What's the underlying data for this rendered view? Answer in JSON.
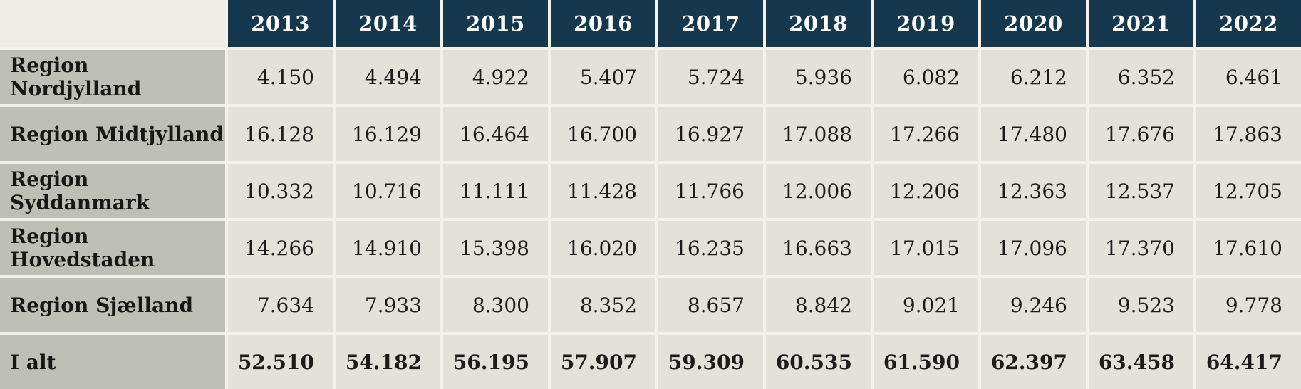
{
  "table": {
    "corner_label": "",
    "columns": [
      "2013",
      "2014",
      "2015",
      "2016",
      "2017",
      "2018",
      "2019",
      "2020",
      "2021",
      "2022"
    ],
    "rows": [
      {
        "label": "Region Nordjylland",
        "bold": false,
        "values": [
          "4.150",
          "4.494",
          "4.922",
          "5.407",
          "5.724",
          "5.936",
          "6.082",
          "6.212",
          "6.352",
          "6.461"
        ]
      },
      {
        "label": "Region Midtjylland",
        "bold": false,
        "values": [
          "16.128",
          "16.129",
          "16.464",
          "16.700",
          "16.927",
          "17.088",
          "17.266",
          "17.480",
          "17.676",
          "17.863"
        ]
      },
      {
        "label": "Region Syddanmark",
        "bold": false,
        "values": [
          "10.332",
          "10.716",
          "11.111",
          "11.428",
          "11.766",
          "12.006",
          "12.206",
          "12.363",
          "12.537",
          "12.705"
        ]
      },
      {
        "label": "Region Hovedstaden",
        "bold": false,
        "values": [
          "14.266",
          "14.910",
          "15.398",
          "16.020",
          "16.235",
          "16.663",
          "17.015",
          "17.096",
          "17.370",
          "17.610"
        ]
      },
      {
        "label": "Region Sjælland",
        "bold": false,
        "values": [
          "7.634",
          "7.933",
          "8.300",
          "8.352",
          "8.657",
          "8.842",
          "9.021",
          "9.246",
          "9.523",
          "9.778"
        ]
      },
      {
        "label": "I alt",
        "bold": true,
        "values": [
          "52.510",
          "54.182",
          "56.195",
          "57.907",
          "59.309",
          "60.535",
          "61.590",
          "62.397",
          "63.458",
          "64.417"
        ]
      }
    ]
  },
  "chart_data": {
    "type": "table",
    "categories": [
      "2013",
      "2014",
      "2015",
      "2016",
      "2017",
      "2018",
      "2019",
      "2020",
      "2021",
      "2022"
    ],
    "series": [
      {
        "name": "Region Nordjylland",
        "values": [
          4150,
          4494,
          4922,
          5407,
          5724,
          5936,
          6082,
          6212,
          6352,
          6461
        ]
      },
      {
        "name": "Region Midtjylland",
        "values": [
          16128,
          16129,
          16464,
          16700,
          16927,
          17088,
          17266,
          17480,
          17676,
          17863
        ]
      },
      {
        "name": "Region Syddanmark",
        "values": [
          10332,
          10716,
          11111,
          11428,
          11766,
          12006,
          12206,
          12363,
          12537,
          12705
        ]
      },
      {
        "name": "Region Hovedstaden",
        "values": [
          14266,
          14910,
          15398,
          16020,
          16235,
          16663,
          17015,
          17096,
          17370,
          17610
        ]
      },
      {
        "name": "Region Sjælland",
        "values": [
          7634,
          7933,
          8300,
          8352,
          8657,
          8842,
          9021,
          9246,
          9523,
          9778
        ]
      },
      {
        "name": "I alt",
        "values": [
          52510,
          54182,
          56195,
          57907,
          59309,
          60535,
          61590,
          62397,
          63458,
          64417
        ]
      }
    ],
    "title": "",
    "xlabel": "",
    "ylabel": "",
    "number_format": "da-DK thousands separator '.'"
  },
  "colors": {
    "header_bg": "#16384e",
    "header_text": "#ffffff",
    "row_label_bg": "#bfc0b5",
    "cell_bg": "#e4e1d8",
    "page_bg": "#f0ede4",
    "separator": "#f4f1e8",
    "text": "#1c1c1a"
  }
}
